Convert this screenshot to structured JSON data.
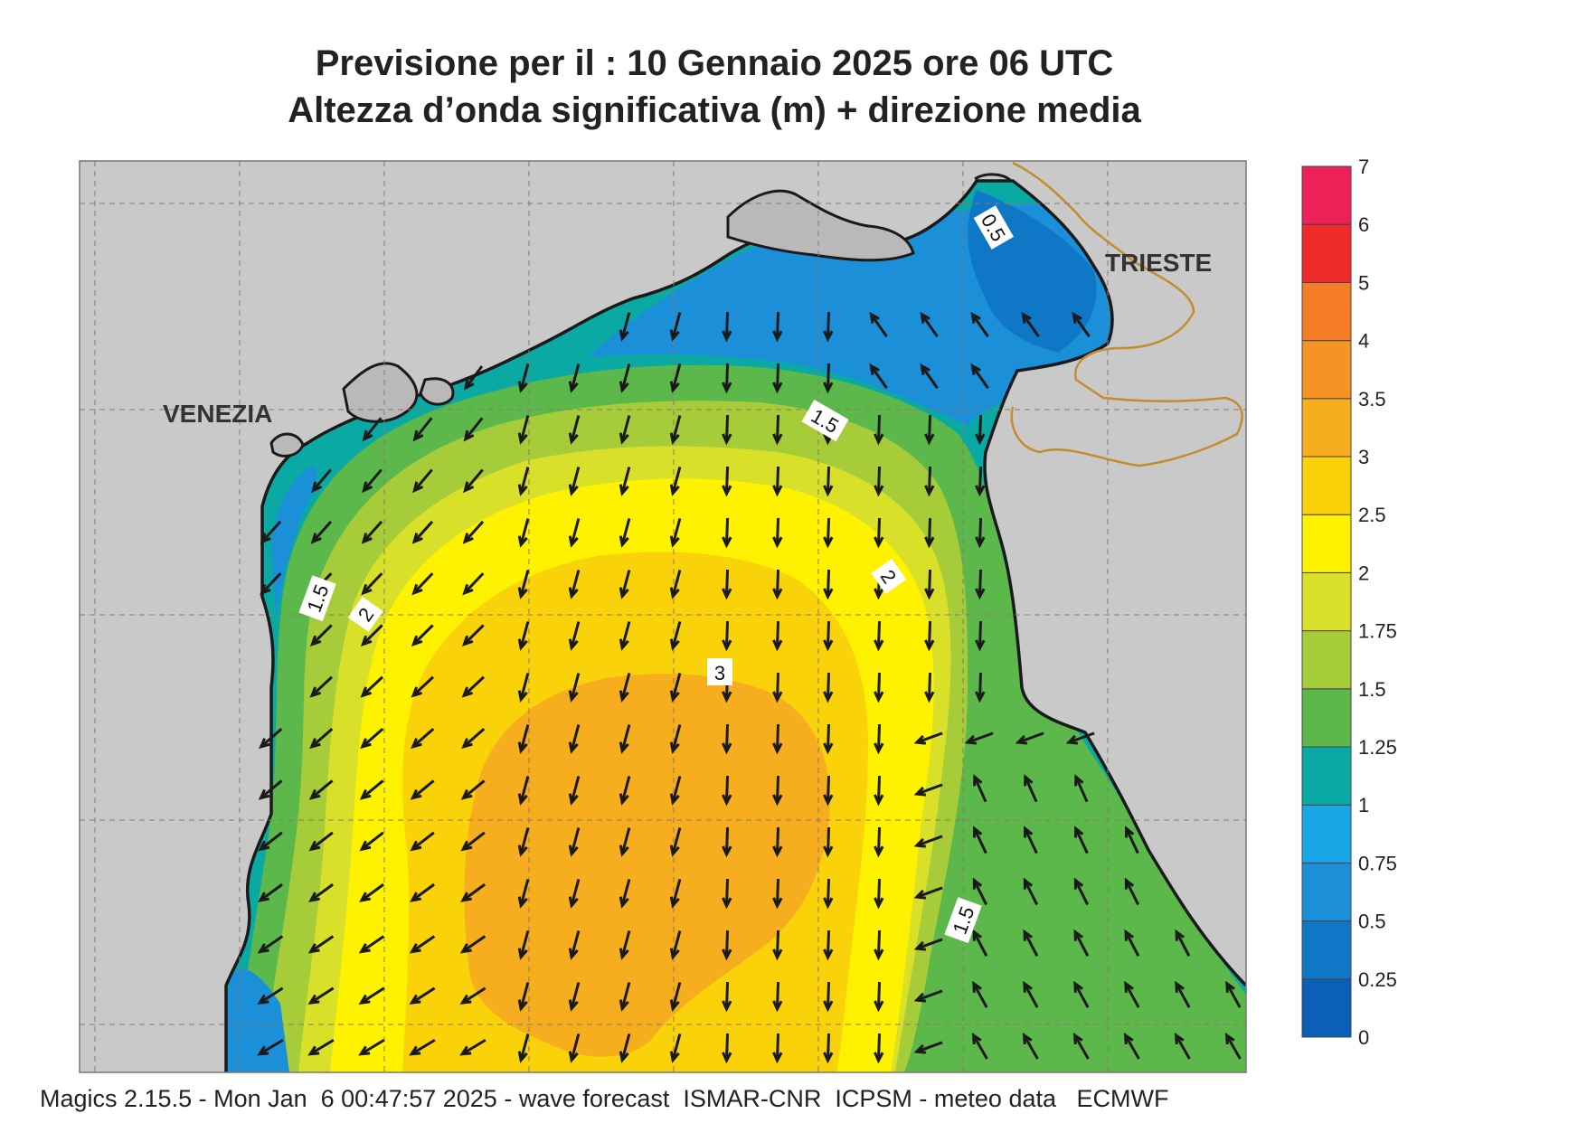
{
  "title_line1": "Previsione per il  :  10  Gennaio  2025   ore 06 UTC",
  "title_line2": "Altezza d’onda significativa (m) + direzione media",
  "footer": "Magics 2.15.5 - Mon Jan  6 00:47:57 2025 - wave forecast  ISMAR-CNR  ICPSM - meteo data   ECMWF",
  "cities": {
    "venezia": "VENEZIA",
    "trieste": "TRIESTE"
  },
  "colorbar": {
    "labels": [
      "0",
      "0.25",
      "0.5",
      "0.75",
      "1",
      "1.25",
      "1.5",
      "1.75",
      "2",
      "2.5",
      "3",
      "3.5",
      "4",
      "5",
      "6",
      "7"
    ],
    "colors": [
      "#0b5fb8",
      "#0f78c6",
      "#1b8fd8",
      "#1aa6e6",
      "#0aa9a3",
      "#5db84c",
      "#a6cc3a",
      "#d9e02a",
      "#fff200",
      "#fad20a",
      "#f7ae1e",
      "#f59425",
      "#f47c24",
      "#ee2a2b",
      "#ec2157"
    ]
  },
  "contour_labels": [
    "0.5",
    "1.5",
    "1.5",
    "2",
    "2",
    "3",
    "1.5"
  ],
  "colors": {
    "land": "#c9c9c9",
    "lagoon_land": "#b9b9b9",
    "coast": "#1a1a1a",
    "border": "#c58b2d",
    "arrow": "#1a1a1a",
    "grid": "#8a7a66"
  }
}
